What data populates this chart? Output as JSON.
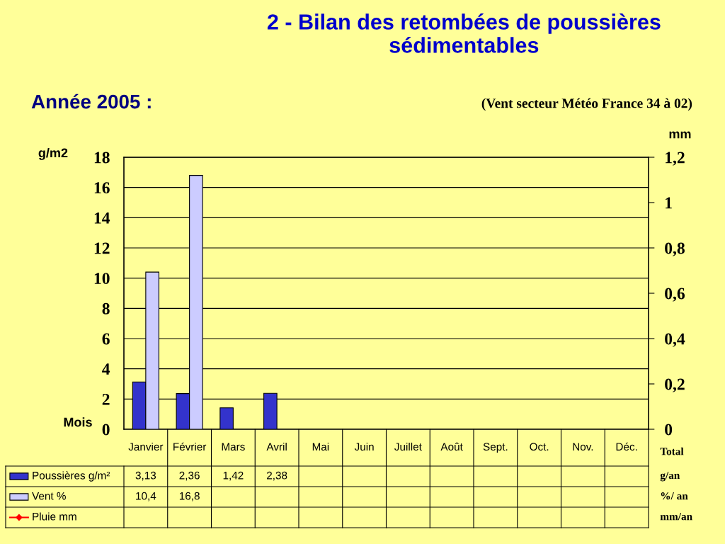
{
  "chart_data": {
    "type": "bar",
    "title": "2 - Bilan des retombées de poussières sédimentables",
    "subtitle": "Année 2005 :",
    "xlabel": "Mois",
    "ylabel": "g/m2",
    "y2label": "mm",
    "categories": [
      "Janvier",
      "Février",
      "Mars",
      "Avril",
      "Mai",
      "Juin",
      "Juillet",
      "Août",
      "Sept.",
      "Oct.",
      "Nov.",
      "Déc."
    ],
    "series": [
      {
        "name": "Poussières g/m²",
        "color": "#3333cc",
        "values": [
          3.13,
          2.36,
          1.42,
          2.38,
          null,
          null,
          null,
          null,
          null,
          null,
          null,
          null
        ],
        "value_labels": [
          "3,13",
          "2,36",
          "1,42",
          "2,38",
          null,
          null,
          null,
          null,
          null,
          null,
          null,
          null
        ]
      },
      {
        "name": "Vent %",
        "color": "#ccccff",
        "values": [
          10.4,
          16.8,
          null,
          null,
          null,
          null,
          null,
          null,
          null,
          null,
          null,
          null
        ],
        "value_labels": [
          "10,4",
          "16,8",
          null,
          null,
          null,
          null,
          null,
          null,
          null,
          null,
          null,
          null
        ]
      },
      {
        "name": "Pluie mm",
        "color": "#ff0000",
        "type": "line",
        "axis": "y2",
        "marker": "diamond",
        "values": [
          null,
          null,
          null,
          null,
          null,
          null,
          null,
          null,
          null,
          null,
          null,
          null
        ]
      }
    ],
    "ylim": [
      0,
      18
    ],
    "yticks": [
      0,
      2,
      4,
      6,
      8,
      10,
      12,
      14,
      16,
      18
    ],
    "y2lim": [
      0,
      1.2
    ],
    "y2ticks": [
      0,
      {
        "value": 0.2,
        "label": "0,2"
      },
      {
        "value": 0.4,
        "label": "0,4"
      },
      {
        "value": 0.6,
        "label": "0,6"
      },
      {
        "value": 0.8,
        "label": "0,8"
      },
      1,
      {
        "value": 1.2,
        "label": "1,2"
      }
    ],
    "grid": "y",
    "legend": "bottom left",
    "annotations": [
      "(Vent secteur Météo France 34 à 02)",
      "Total",
      "g/an",
      "%/ an",
      "mm/an"
    ]
  }
}
